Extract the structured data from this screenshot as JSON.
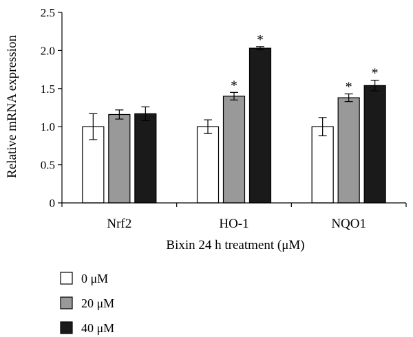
{
  "chart_data": {
    "type": "bar",
    "title": "",
    "xlabel": "Bixin 24 h treatment (μM)",
    "ylabel": "Relative mRNA expression",
    "ylim": [
      0,
      2.5
    ],
    "yticks": [
      "0",
      "0.5",
      "1.0",
      "1.5",
      "2.0",
      "2.5"
    ],
    "categories": [
      "Nrf2",
      "HO-1",
      "NQO1"
    ],
    "legend_position": "bottom-left",
    "grid": false,
    "series": [
      {
        "name": "0 μM",
        "color": "#ffffff",
        "values": [
          1.0,
          1.0,
          1.0
        ],
        "errors": [
          0.17,
          0.09,
          0.12
        ],
        "significant": [
          false,
          false,
          false
        ]
      },
      {
        "name": "20 μM",
        "color": "#999999",
        "values": [
          1.16,
          1.4,
          1.38
        ],
        "errors": [
          0.06,
          0.05,
          0.05
        ],
        "significant": [
          false,
          true,
          true
        ]
      },
      {
        "name": "40 μM",
        "color": "#1a1a1a",
        "values": [
          1.17,
          2.03,
          1.54
        ],
        "errors": [
          0.09,
          0.02,
          0.07
        ],
        "significant": [
          false,
          true,
          true
        ]
      }
    ],
    "significance_marker": "*"
  }
}
